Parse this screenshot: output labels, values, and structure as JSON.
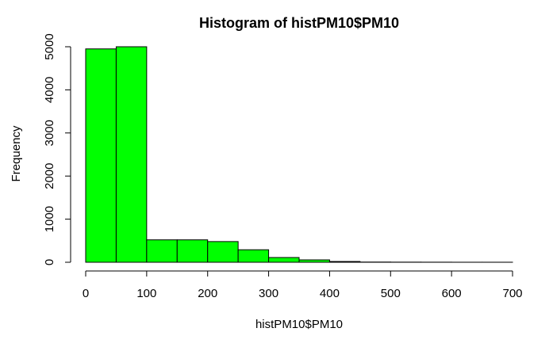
{
  "chart_data": {
    "type": "bar",
    "title": "Histogram of histPM10$PM10",
    "xlabel": "histPM10$PM10",
    "ylabel": "Frequency",
    "bin_edges": [
      0,
      50,
      100,
      150,
      200,
      250,
      300,
      350,
      400,
      450,
      500,
      550,
      600,
      650,
      700
    ],
    "values": [
      4950,
      5000,
      520,
      520,
      480,
      290,
      110,
      55,
      18,
      5,
      3,
      2,
      1,
      1
    ],
    "xlim": [
      0,
      700
    ],
    "ylim": [
      0,
      5000
    ],
    "x_ticks": [
      "0",
      "100",
      "200",
      "300",
      "400",
      "500",
      "600",
      "700"
    ],
    "y_ticks": [
      "0",
      "1000",
      "2000",
      "3000",
      "4000",
      "5000"
    ],
    "bar_color": "#00FF00",
    "grid": false,
    "legend": "none"
  }
}
